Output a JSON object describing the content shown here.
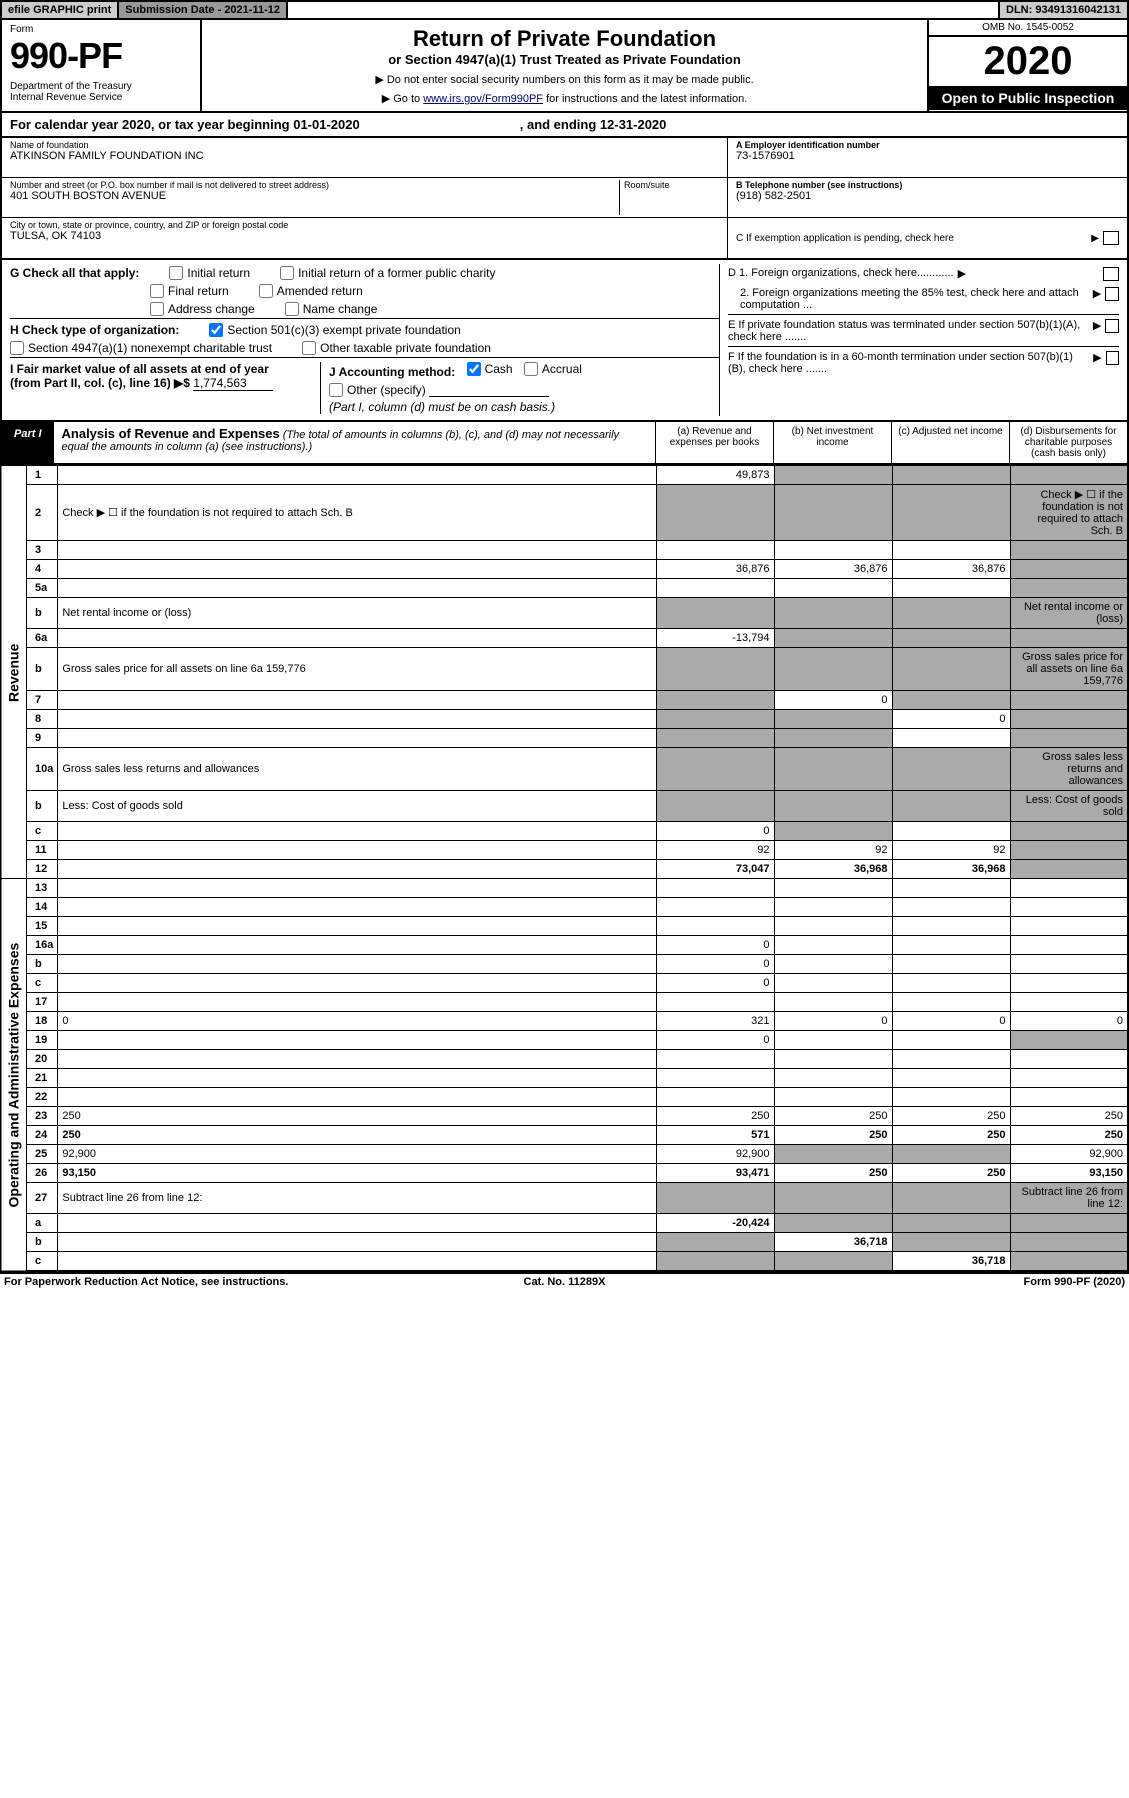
{
  "header": {
    "efile": "efile GRAPHIC print",
    "submission_label": "Submission Date - 2021-11-12",
    "dln": "DLN: 93491316042131"
  },
  "form_header": {
    "form_label": "Form",
    "form_num": "990-PF",
    "dept": "Department of the Treasury\nInternal Revenue Service",
    "title": "Return of Private Foundation",
    "subtitle": "or Section 4947(a)(1) Trust Treated as Private Foundation",
    "instr1": "▶ Do not enter social security numbers on this form as it may be made public.",
    "instr2_pre": "▶ Go to ",
    "instr2_link": "www.irs.gov/Form990PF",
    "instr2_post": " for instructions and the latest information.",
    "omb": "OMB No. 1545-0052",
    "year": "2020",
    "open": "Open to Public Inspection"
  },
  "cal_year": {
    "text": "For calendar year 2020, or tax year beginning 01-01-2020",
    "ending": ", and ending 12-31-2020"
  },
  "id": {
    "name_label": "Name of foundation",
    "name": "ATKINSON FAMILY FOUNDATION INC",
    "addr_label": "Number and street (or P.O. box number if mail is not delivered to street address)",
    "addr": "401 SOUTH BOSTON AVENUE",
    "room_label": "Room/suite",
    "city_label": "City or town, state or province, country, and ZIP or foreign postal code",
    "city": "TULSA, OK  74103",
    "ein_label": "A Employer identification number",
    "ein": "73-1576901",
    "phone_label": "B Telephone number (see instructions)",
    "phone": "(918) 582-2501",
    "c_label": "C If exemption application is pending, check here"
  },
  "checks": {
    "g_label": "G Check all that apply:",
    "g_items": [
      "Initial return",
      "Initial return of a former public charity",
      "Final return",
      "Amended return",
      "Address change",
      "Name change"
    ],
    "h_label": "H Check type of organization:",
    "h_501c3": "Section 501(c)(3) exempt private foundation",
    "h_4947": "Section 4947(a)(1) nonexempt charitable trust",
    "h_other": "Other taxable private foundation",
    "i_label": "I Fair market value of all assets at end of year (from Part II, col. (c), line 16) ▶$",
    "i_value": "1,774,563",
    "j_label": "J Accounting method:",
    "j_cash": "Cash",
    "j_accrual": "Accrual",
    "j_other": "Other (specify)",
    "j_note": "(Part I, column (d) must be on cash basis.)",
    "d1": "D 1. Foreign organizations, check here............",
    "d2": "2. Foreign organizations meeting the 85% test, check here and attach computation ...",
    "e": "E  If private foundation status was terminated under section 507(b)(1)(A), check here .......",
    "f": "F  If the foundation is in a 60-month termination under section 507(b)(1)(B), check here .......",
    "arrow": "▶"
  },
  "part1": {
    "label": "Part I",
    "title": "Analysis of Revenue and Expenses",
    "note": "(The total of amounts in columns (b), (c), and (d) may not necessarily equal the amounts in column (a) (see instructions).)",
    "col_a": "(a)   Revenue and expenses per books",
    "col_b": "(b)   Net investment income",
    "col_c": "(c)   Adjusted net income",
    "col_d": "(d)   Disbursements for charitable purposes (cash basis only)"
  },
  "rows": [
    {
      "n": "1",
      "d": "",
      "a": "49,873",
      "b": "",
      "c": "",
      "shade": [
        "b",
        "c",
        "d"
      ]
    },
    {
      "n": "2",
      "d": "Check ▶ ☐ if the foundation is not required to attach Sch. B",
      "shade": [
        "a",
        "b",
        "c",
        "d"
      ]
    },
    {
      "n": "3",
      "d": "",
      "a": "",
      "b": "",
      "c": "",
      "shade": [
        "d"
      ]
    },
    {
      "n": "4",
      "d": "",
      "a": "36,876",
      "b": "36,876",
      "c": "36,876",
      "shade": [
        "d"
      ]
    },
    {
      "n": "5a",
      "d": "",
      "a": "",
      "b": "",
      "c": "",
      "shade": [
        "d"
      ]
    },
    {
      "n": "b",
      "d": "Net rental income or (loss)",
      "shade": [
        "a",
        "b",
        "c",
        "d"
      ]
    },
    {
      "n": "6a",
      "d": "",
      "a": "-13,794",
      "b": "",
      "c": "",
      "shade": [
        "b",
        "c",
        "d"
      ]
    },
    {
      "n": "b",
      "d": "Gross sales price for all assets on line 6a               159,776",
      "shade": [
        "a",
        "b",
        "c",
        "d"
      ]
    },
    {
      "n": "7",
      "d": "",
      "a": "",
      "b": "0",
      "c": "",
      "shade": [
        "a",
        "c",
        "d"
      ]
    },
    {
      "n": "8",
      "d": "",
      "a": "",
      "b": "",
      "c": "0",
      "shade": [
        "a",
        "b",
        "d"
      ]
    },
    {
      "n": "9",
      "d": "",
      "a": "",
      "b": "",
      "c": "",
      "shade": [
        "a",
        "b",
        "d"
      ]
    },
    {
      "n": "10a",
      "d": "Gross sales less returns and allowances",
      "shade": [
        "a",
        "b",
        "c",
        "d"
      ]
    },
    {
      "n": "b",
      "d": "Less: Cost of goods sold",
      "shade": [
        "a",
        "b",
        "c",
        "d"
      ]
    },
    {
      "n": "c",
      "d": "",
      "a": "0",
      "b": "",
      "c": "",
      "shade": [
        "b",
        "d"
      ]
    },
    {
      "n": "11",
      "d": "",
      "a": "92",
      "b": "92",
      "c": "92",
      "shade": [
        "d"
      ]
    },
    {
      "n": "12",
      "d": "",
      "a": "73,047",
      "b": "36,968",
      "c": "36,968",
      "bold": true,
      "shade": [
        "d"
      ]
    },
    {
      "n": "13",
      "d": "",
      "a": "",
      "b": "",
      "c": ""
    },
    {
      "n": "14",
      "d": "",
      "a": "",
      "b": "",
      "c": ""
    },
    {
      "n": "15",
      "d": "",
      "a": "",
      "b": "",
      "c": ""
    },
    {
      "n": "16a",
      "d": "",
      "a": "0",
      "b": "",
      "c": ""
    },
    {
      "n": "b",
      "d": "",
      "a": "0",
      "b": "",
      "c": ""
    },
    {
      "n": "c",
      "d": "",
      "a": "0",
      "b": "",
      "c": ""
    },
    {
      "n": "17",
      "d": "",
      "a": "",
      "b": "",
      "c": ""
    },
    {
      "n": "18",
      "d": "0",
      "a": "321",
      "b": "0",
      "c": "0"
    },
    {
      "n": "19",
      "d": "",
      "a": "0",
      "b": "",
      "c": "",
      "shade": [
        "d"
      ]
    },
    {
      "n": "20",
      "d": "",
      "a": "",
      "b": "",
      "c": ""
    },
    {
      "n": "21",
      "d": "",
      "a": "",
      "b": "",
      "c": ""
    },
    {
      "n": "22",
      "d": "",
      "a": "",
      "b": "",
      "c": ""
    },
    {
      "n": "23",
      "d": "250",
      "a": "250",
      "b": "250",
      "c": "250"
    },
    {
      "n": "24",
      "d": "250",
      "a": "571",
      "b": "250",
      "c": "250",
      "bold": true
    },
    {
      "n": "25",
      "d": "92,900",
      "a": "92,900",
      "b": "",
      "c": "",
      "shade": [
        "b",
        "c"
      ]
    },
    {
      "n": "26",
      "d": "93,150",
      "a": "93,471",
      "b": "250",
      "c": "250",
      "bold": true
    },
    {
      "n": "27",
      "d": "Subtract line 26 from line 12:",
      "shade": [
        "a",
        "b",
        "c",
        "d"
      ]
    },
    {
      "n": "a",
      "d": "",
      "a": "-20,424",
      "b": "",
      "c": "",
      "bold": true,
      "shade": [
        "b",
        "c",
        "d"
      ]
    },
    {
      "n": "b",
      "d": "",
      "a": "",
      "b": "36,718",
      "c": "",
      "bold": true,
      "shade": [
        "a",
        "c",
        "d"
      ]
    },
    {
      "n": "c",
      "d": "",
      "a": "",
      "b": "",
      "c": "36,718",
      "bold": true,
      "shade": [
        "a",
        "b",
        "d"
      ]
    }
  ],
  "side_labels": {
    "revenue": "Revenue",
    "expenses": "Operating and Administrative Expenses"
  },
  "footer": {
    "left": "For Paperwork Reduction Act Notice, see instructions.",
    "mid": "Cat. No. 11289X",
    "right": "Form 990-PF (2020)"
  }
}
